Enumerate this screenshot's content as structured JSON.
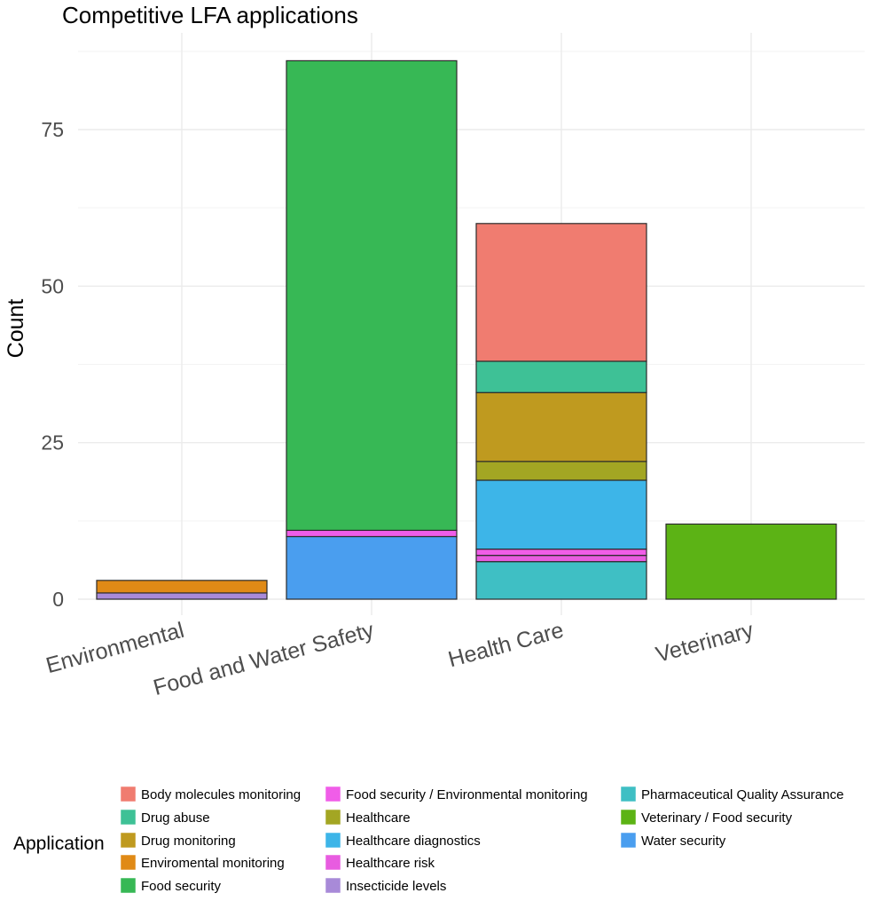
{
  "chart_data": {
    "type": "bar",
    "stacked": true,
    "title": "Competitive LFA applications",
    "xlabel": "",
    "ylabel": "Count",
    "ylim": [
      0,
      89
    ],
    "yticks": [
      0,
      25,
      50,
      75
    ],
    "grid": true,
    "categories": [
      "Environmental",
      "Food and Water Safety",
      "Health Care",
      "Veterinary"
    ],
    "legend_title": "Application",
    "legend_position": "bottom",
    "series": [
      {
        "name": "Pharmaceutical Quality Assurance",
        "color": "#3FBFC4",
        "values": [
          0,
          0,
          6,
          0
        ]
      },
      {
        "name": "Insecticide levels",
        "color": "#A88AD8",
        "values": [
          1,
          0,
          0,
          0
        ]
      },
      {
        "name": "Water security",
        "color": "#4A9EEF",
        "values": [
          0,
          10,
          0,
          0
        ]
      },
      {
        "name": "Healthcare risk",
        "color": "#E85CE0",
        "values": [
          0,
          0,
          1,
          0
        ]
      },
      {
        "name": "Food security / Environmental monitoring",
        "color": "#F05DE8",
        "values": [
          0,
          1,
          1,
          0
        ]
      },
      {
        "name": "Healthcare diagnostics",
        "color": "#3DB5E8",
        "values": [
          0,
          0,
          11,
          0
        ]
      },
      {
        "name": "Healthcare",
        "color": "#A3A623",
        "values": [
          0,
          0,
          3,
          0
        ]
      },
      {
        "name": "Drug monitoring",
        "color": "#BF9A1F",
        "values": [
          0,
          0,
          11,
          0
        ]
      },
      {
        "name": "Drug abuse",
        "color": "#3EC196",
        "values": [
          0,
          0,
          5,
          0
        ]
      },
      {
        "name": "Body molecules monitoring",
        "color": "#F07C70",
        "values": [
          0,
          0,
          22,
          0
        ]
      },
      {
        "name": "Enviromental monitoring",
        "color": "#E08A16",
        "values": [
          2,
          0,
          0,
          0
        ]
      },
      {
        "name": "Food security",
        "color": "#37B855",
        "values": [
          0,
          75,
          0,
          0
        ]
      },
      {
        "name": "Veterinary / Food security",
        "color": "#5CB315",
        "values": [
          0,
          0,
          0,
          12
        ]
      }
    ],
    "legend_order": [
      [
        "Body molecules monitoring",
        "Drug abuse",
        "Drug monitoring",
        "Enviromental monitoring",
        "Food security"
      ],
      [
        "Food security / Environmental monitoring",
        "Healthcare",
        "Healthcare diagnostics",
        "Healthcare risk",
        "Insecticide levels"
      ],
      [
        "Pharmaceutical Quality Assurance",
        "Veterinary / Food security",
        "Water security"
      ]
    ]
  }
}
